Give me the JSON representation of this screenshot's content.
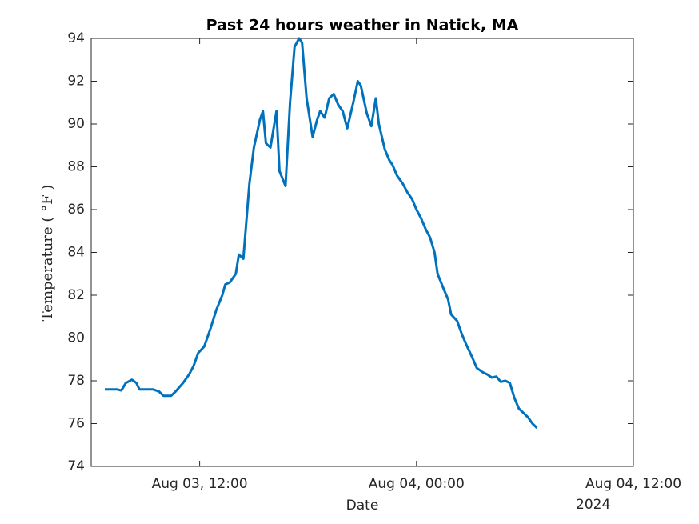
{
  "chart_data": {
    "type": "line",
    "title": "Past 24 hours weather in Natick, MA",
    "x_label": "Date",
    "y_label": "Temperature ( °F )",
    "x_secondary_label": "2024",
    "xlim": [
      "2024-08-03 06:00",
      "2024-08-04 12:00"
    ],
    "xticks": [
      {
        "value": "2024-08-03 12:00",
        "label": "Aug 03, 12:00"
      },
      {
        "value": "2024-08-04 00:00",
        "label": "Aug 04, 00:00"
      },
      {
        "value": "2024-08-04 12:00",
        "label": "Aug 04, 12:00"
      }
    ],
    "ylim": [
      74,
      94
    ],
    "yticks": [
      74,
      76,
      78,
      80,
      82,
      84,
      86,
      88,
      90,
      92,
      94
    ],
    "grid": false,
    "series": [
      {
        "color": "#0072bd",
        "x": [
          "2024-08-03 06:45",
          "2024-08-03 07:25",
          "2024-08-03 07:40",
          "2024-08-03 07:55",
          "2024-08-03 08:15",
          "2024-08-03 08:30",
          "2024-08-03 08:40",
          "2024-08-03 09:25",
          "2024-08-03 09:45",
          "2024-08-03 10:00",
          "2024-08-03 10:25",
          "2024-08-03 10:40",
          "2024-08-03 11:05",
          "2024-08-03 11:25",
          "2024-08-03 11:40",
          "2024-08-03 11:55",
          "2024-08-03 12:15",
          "2024-08-03 12:35",
          "2024-08-03 12:55",
          "2024-08-03 13:15",
          "2024-08-03 13:25",
          "2024-08-03 13:40",
          "2024-08-03 14:00",
          "2024-08-03 14:10",
          "2024-08-03 14:25",
          "2024-08-03 14:45",
          "2024-08-03 15:00",
          "2024-08-03 15:20",
          "2024-08-03 15:30",
          "2024-08-03 15:40",
          "2024-08-03 15:55",
          "2024-08-03 16:15",
          "2024-08-03 16:25",
          "2024-08-03 16:45",
          "2024-08-03 17:00",
          "2024-08-03 17:15",
          "2024-08-03 17:30",
          "2024-08-03 17:40",
          "2024-08-03 17:55",
          "2024-08-03 18:15",
          "2024-08-03 18:30",
          "2024-08-03 18:40",
          "2024-08-03 18:55",
          "2024-08-03 19:10",
          "2024-08-03 19:25",
          "2024-08-03 19:40",
          "2024-08-03 19:55",
          "2024-08-03 20:10",
          "2024-08-03 20:30",
          "2024-08-03 20:45",
          "2024-08-03 20:55",
          "2024-08-03 21:15",
          "2024-08-03 21:30",
          "2024-08-03 21:45",
          "2024-08-03 21:55",
          "2024-08-03 22:15",
          "2024-08-03 22:30",
          "2024-08-03 22:40",
          "2024-08-03 22:55",
          "2024-08-03 23:15",
          "2024-08-03 23:30",
          "2024-08-03 23:45",
          "2024-08-04 00:00",
          "2024-08-04 00:15",
          "2024-08-04 00:30",
          "2024-08-04 00:45",
          "2024-08-04 01:00",
          "2024-08-04 01:10",
          "2024-08-04 01:30",
          "2024-08-04 01:45",
          "2024-08-04 01:55",
          "2024-08-04 02:15",
          "2024-08-04 02:30",
          "2024-08-04 02:45",
          "2024-08-04 03:05",
          "2024-08-04 03:20",
          "2024-08-04 03:40",
          "2024-08-04 03:55",
          "2024-08-04 04:10",
          "2024-08-04 04:25",
          "2024-08-04 04:40",
          "2024-08-04 04:55",
          "2024-08-04 05:10",
          "2024-08-04 05:25",
          "2024-08-04 05:40",
          "2024-08-04 05:55",
          "2024-08-04 06:10",
          "2024-08-04 06:25",
          "2024-08-04 06:40"
        ],
        "values": [
          77.6,
          77.6,
          77.55,
          77.9,
          78.05,
          77.9,
          77.6,
          77.6,
          77.5,
          77.3,
          77.3,
          77.5,
          77.9,
          78.3,
          78.7,
          79.3,
          79.6,
          80.4,
          81.3,
          82.0,
          82.5,
          82.6,
          83.0,
          83.9,
          83.7,
          87.2,
          88.9,
          90.2,
          90.6,
          89.1,
          88.9,
          90.6,
          87.8,
          87.1,
          91.0,
          93.6,
          94.0,
          93.8,
          91.2,
          89.4,
          90.2,
          90.6,
          90.3,
          91.2,
          91.4,
          90.9,
          90.6,
          89.8,
          91.0,
          92.0,
          91.8,
          90.5,
          89.9,
          91.2,
          90.0,
          88.8,
          88.3,
          88.1,
          87.6,
          87.2,
          86.8,
          86.5,
          86.0,
          85.6,
          85.1,
          84.7,
          84.0,
          83.0,
          82.3,
          81.8,
          81.1,
          80.8,
          80.2,
          79.7,
          79.1,
          78.6,
          78.4,
          78.3,
          78.15,
          78.2,
          77.95,
          78.0,
          77.9,
          77.2,
          76.7,
          76.5,
          76.3,
          76.0,
          75.8
        ]
      }
    ]
  }
}
